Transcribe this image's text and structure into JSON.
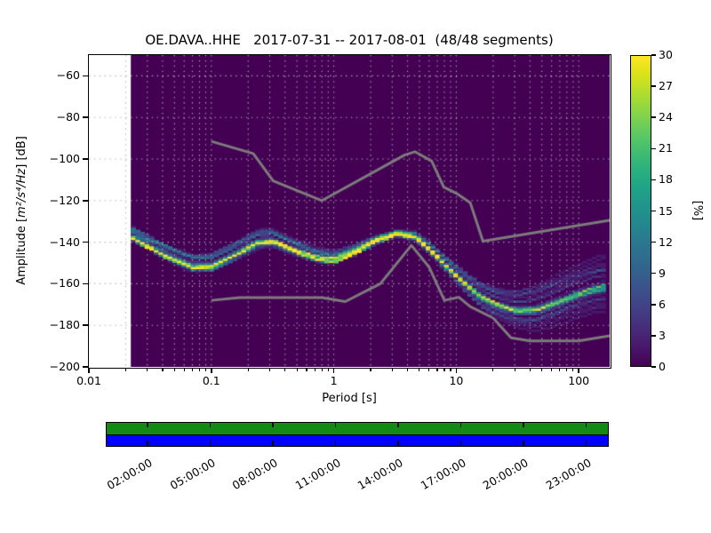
{
  "title": "OE.DAVA..HHE   2017-07-31 -- 2017-08-01  (48/48 segments)",
  "axes": {
    "xlabel": "Period [s]",
    "ylabel": {
      "prefix": "Amplitude [",
      "math": "m²/s⁴/Hz",
      "suffix": "] [dB]"
    },
    "x_scale": "log",
    "x_range": [
      0.01,
      178.9
    ],
    "y_range": [
      -200,
      -50
    ],
    "x_ticks": [
      {
        "label": "0.01",
        "value": 0.01
      },
      {
        "label": "0.1",
        "value": 0.1
      },
      {
        "label": "1",
        "value": 1
      },
      {
        "label": "10",
        "value": 10
      },
      {
        "label": "100",
        "value": 100
      }
    ],
    "y_ticks": [
      {
        "label": "−60",
        "value": -60
      },
      {
        "label": "−80",
        "value": -80
      },
      {
        "label": "−100",
        "value": -100
      },
      {
        "label": "−120",
        "value": -120
      },
      {
        "label": "−140",
        "value": -140
      },
      {
        "label": "−160",
        "value": -160
      },
      {
        "label": "−180",
        "value": -180
      },
      {
        "label": "−200",
        "value": -200
      }
    ]
  },
  "colorbar": {
    "label": "[%]",
    "min": 0,
    "max": 30,
    "ticks": [
      0,
      3,
      6,
      9,
      12,
      15,
      18,
      21,
      24,
      27,
      30
    ],
    "colormap": "viridis",
    "stops": [
      "#440154",
      "#48186a",
      "#472d7b",
      "#424086",
      "#3b528b",
      "#33638d",
      "#2c728e",
      "#26828e",
      "#21918c",
      "#1fa088",
      "#28ae80",
      "#3fbc73",
      "#5ec962",
      "#84d44b",
      "#addc30",
      "#d8e219",
      "#fde725"
    ]
  },
  "chart_data": {
    "type": "heatmap",
    "description": "Probabilistic power spectral density (PPSD): probability [%] of amplitude [dB] vs period [s], 48/48 segments, viridis colormap clipped at 30%",
    "segments_total": 48,
    "segments_used": 48,
    "db_bin_width": 1,
    "period_data_range": [
      0.022,
      178.9
    ],
    "period_bins_per_octave": 8,
    "clim": [
      0,
      30
    ],
    "mode_curve_period_db": [
      [
        0.022,
        -138.0
      ],
      [
        0.03,
        -142.5
      ],
      [
        0.045,
        -148.0
      ],
      [
        0.071,
        -152.5
      ],
      [
        0.1,
        -152.0
      ],
      [
        0.15,
        -147.0
      ],
      [
        0.24,
        -140.5
      ],
      [
        0.32,
        -139.8
      ],
      [
        0.45,
        -143.5
      ],
      [
        0.71,
        -147.5
      ],
      [
        1.0,
        -148.5
      ],
      [
        1.5,
        -144.5
      ],
      [
        2.2,
        -139.3
      ],
      [
        3.3,
        -136.0
      ],
      [
        4.6,
        -137.5
      ],
      [
        6.0,
        -143.0
      ],
      [
        7.9,
        -150.0
      ],
      [
        11.2,
        -158.5
      ],
      [
        15.8,
        -166.0
      ],
      [
        22.4,
        -170.5
      ],
      [
        31.6,
        -173.0
      ],
      [
        44.7,
        -172.5
      ],
      [
        63,
        -169.5
      ],
      [
        89,
        -166.0
      ],
      [
        126,
        -163.0
      ],
      [
        178,
        -161.0
      ]
    ],
    "noise_models": {
      "nhnm_period_db": [
        [
          0.1,
          -91.5
        ],
        [
          0.22,
          -97.4
        ],
        [
          0.32,
          -110.5
        ],
        [
          0.8,
          -120.0
        ],
        [
          3.8,
          -98.0
        ],
        [
          4.6,
          -96.5
        ],
        [
          6.3,
          -101.0
        ],
        [
          7.9,
          -113.5
        ],
        [
          10.0,
          -116.5
        ],
        [
          13.0,
          -121.0
        ],
        [
          16.5,
          -139.5
        ],
        [
          178.9,
          -129.5
        ]
      ],
      "nlnm_period_db": [
        [
          0.1,
          -168.0
        ],
        [
          0.17,
          -166.7
        ],
        [
          0.4,
          -166.7
        ],
        [
          0.8,
          -166.7
        ],
        [
          1.24,
          -168.6
        ],
        [
          2.4,
          -160.0
        ],
        [
          4.3,
          -141.5
        ],
        [
          6.0,
          -152.0
        ],
        [
          8.0,
          -168.0
        ],
        [
          10.5,
          -166.5
        ],
        [
          13.0,
          -171.0
        ],
        [
          20.0,
          -176.5
        ],
        [
          28.0,
          -186.0
        ],
        [
          40.0,
          -187.5
        ],
        [
          100.0,
          -187.5
        ],
        [
          178.9,
          -185.0
        ]
      ]
    },
    "render_model": {
      "quiet_segments": 28,
      "noisy_segments": 20,
      "quiet_spread_db": [
        [
          0.022,
          0.9
        ],
        [
          0.04,
          1.1
        ],
        [
          0.1,
          2.4
        ],
        [
          0.32,
          2.4
        ],
        [
          1.0,
          2.2
        ],
        [
          2.2,
          1.0
        ],
        [
          3.3,
          0.8
        ],
        [
          6.0,
          1.1
        ],
        [
          11,
          1.8
        ],
        [
          22,
          2.4
        ],
        [
          45,
          2.8
        ],
        [
          178,
          3.2
        ]
      ],
      "noisy_spread_db": [
        [
          0.022,
          1.6
        ],
        [
          0.04,
          2.2
        ],
        [
          0.1,
          3.4
        ],
        [
          0.32,
          3.4
        ],
        [
          1.0,
          2.8
        ],
        [
          2.2,
          1.4
        ],
        [
          3.3,
          1.1
        ],
        [
          6.0,
          2.2
        ],
        [
          11,
          4.0
        ],
        [
          22,
          6.0
        ],
        [
          45,
          8.5
        ],
        [
          90,
          10.0
        ],
        [
          178,
          11.5
        ]
      ],
      "day_lift_db": [
        [
          0.022,
          5.5
        ],
        [
          0.05,
          5.0
        ],
        [
          0.1,
          3.5
        ],
        [
          0.32,
          2.5
        ],
        [
          1.0,
          1.2
        ],
        [
          2.2,
          0.6
        ],
        [
          6.0,
          0.3
        ],
        [
          16,
          0.0
        ],
        [
          178,
          0.0
        ]
      ]
    }
  },
  "coverage_bar": {
    "data_color": "#138a13",
    "processed_color": "#0000ff",
    "span_hours": [
      0,
      24
    ],
    "tick_hours": [
      2,
      5,
      8,
      11,
      14,
      17,
      20,
      23
    ],
    "time_labels": [
      {
        "label": "02:00:00",
        "hour": 2
      },
      {
        "label": "05:00:00",
        "hour": 5
      },
      {
        "label": "08:00:00",
        "hour": 8
      },
      {
        "label": "11:00:00",
        "hour": 11
      },
      {
        "label": "14:00:00",
        "hour": 14
      },
      {
        "label": "17:00:00",
        "hour": 17
      },
      {
        "label": "20:00:00",
        "hour": 20
      },
      {
        "label": "23:00:00",
        "hour": 23
      }
    ]
  },
  "styles": {
    "grid_color": "#b0b0b0",
    "frame_color": "#000000",
    "noise_line_color": "#7c7c7c",
    "zero_density_color": "#440154",
    "background": "#ffffff"
  }
}
